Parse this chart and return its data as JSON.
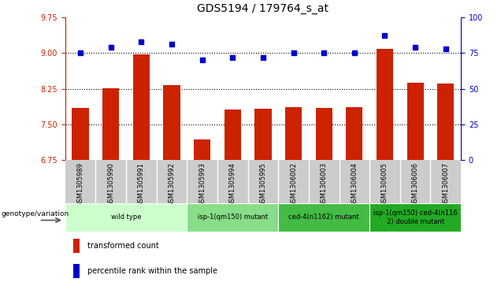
{
  "title": "GDS5194 / 179764_s_at",
  "samples": [
    "GSM1305989",
    "GSM1305990",
    "GSM1305991",
    "GSM1305992",
    "GSM1305993",
    "GSM1305994",
    "GSM1305995",
    "GSM1306002",
    "GSM1306003",
    "GSM1306004",
    "GSM1306005",
    "GSM1306006",
    "GSM1306007"
  ],
  "bar_values": [
    7.84,
    8.26,
    8.97,
    8.32,
    7.18,
    7.81,
    7.83,
    7.86,
    7.84,
    7.87,
    9.08,
    8.38,
    8.35
  ],
  "scatter_values": [
    75,
    79,
    83,
    81,
    70,
    72,
    72,
    75,
    75,
    75,
    87,
    79,
    78
  ],
  "ylim_left": [
    6.75,
    9.75
  ],
  "ylim_right": [
    0,
    100
  ],
  "yticks_left": [
    6.75,
    7.5,
    8.25,
    9.0,
    9.75
  ],
  "yticks_right": [
    0,
    25,
    50,
    75,
    100
  ],
  "hlines": [
    7.5,
    8.25,
    9.0
  ],
  "bar_color": "#cc2200",
  "scatter_color": "#0000cc",
  "bar_width": 0.55,
  "groups": [
    {
      "label": "wild type",
      "start": 0,
      "end": 3,
      "color": "#ccffcc"
    },
    {
      "label": "isp-1(qm150) mutant",
      "start": 4,
      "end": 6,
      "color": "#88dd88"
    },
    {
      "label": "ced-4(n1162) mutant",
      "start": 7,
      "end": 9,
      "color": "#44bb44"
    },
    {
      "label": "isp-1(qm150) ced-4(n116\n2) double mutant",
      "start": 10,
      "end": 12,
      "color": "#22aa22"
    }
  ],
  "xtick_bg_color": "#cccccc",
  "legend_label_bar": "transformed count",
  "legend_label_scatter": "percentile rank within the sample",
  "xlabel_genotype": "genotype/variation",
  "scatter_size": 18,
  "title_fontsize": 10,
  "tick_fontsize": 7,
  "sample_fontsize": 6,
  "group_fontsize": 6,
  "legend_fontsize": 7
}
